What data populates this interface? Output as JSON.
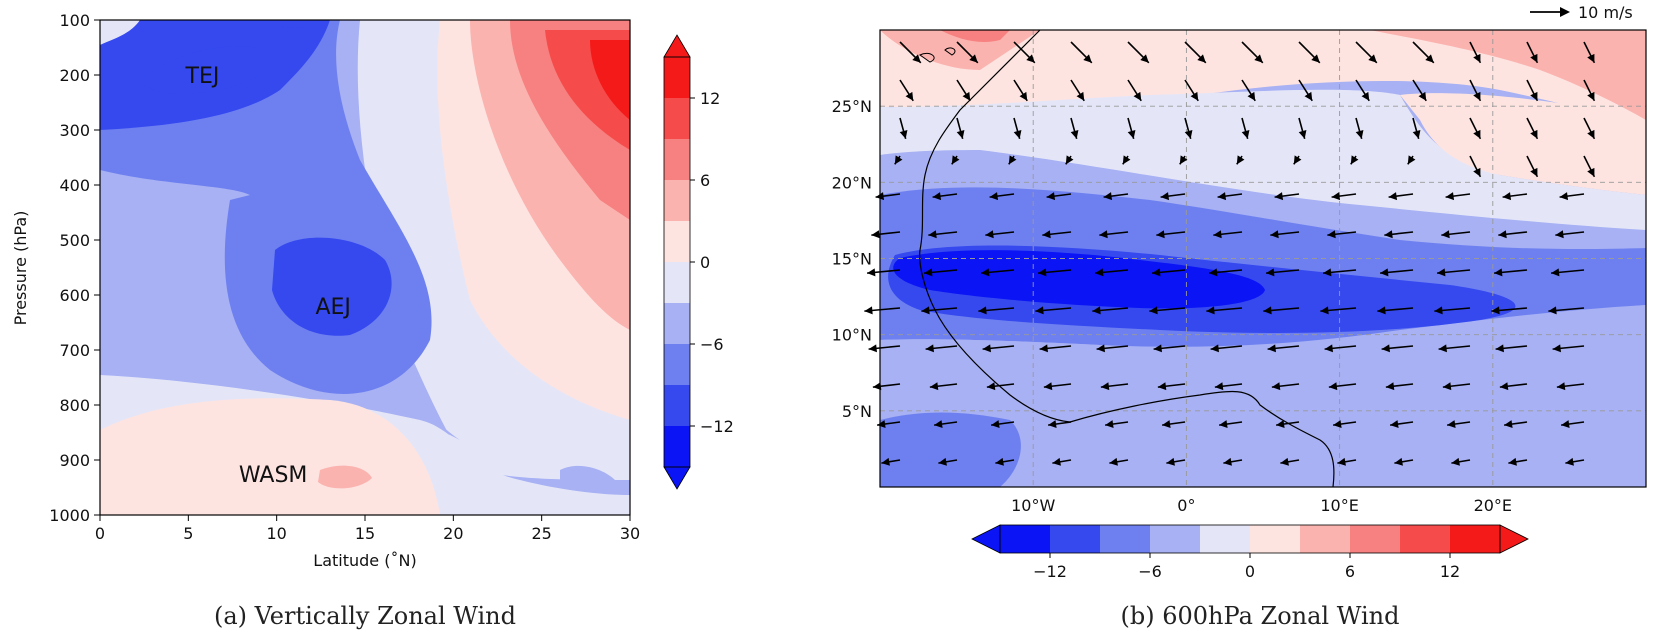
{
  "chart_data": [
    {
      "type": "contour",
      "caption": "(a)  Vertically  Zonal  Wind",
      "xlabel": "Latitude (˚N)",
      "ylabel": "Pressure (hPa)",
      "xlim": [
        0,
        30
      ],
      "ylim": [
        1000,
        100
      ],
      "x_ticks": [
        "0",
        "5",
        "10",
        "15",
        "20",
        "25",
        "30"
      ],
      "y_ticks": [
        "100",
        "200",
        "300",
        "400",
        "500",
        "600",
        "700",
        "800",
        "900",
        "1000"
      ],
      "colorbar_ticks": [
        "12",
        "6",
        "0",
        "−6",
        "−12"
      ],
      "colorbar_levels": [
        -15,
        -12,
        -9,
        -6,
        -3,
        0,
        3,
        6,
        9,
        12,
        15
      ],
      "annotations": [
        {
          "label": "TEJ",
          "lat": 5.8,
          "pressure": 200
        },
        {
          "label": "AEJ",
          "lat": 13.2,
          "pressure": 620
        },
        {
          "label": "WASM",
          "lat": 9.8,
          "pressure": 925
        }
      ]
    },
    {
      "type": "map-contour-vector",
      "caption": "(b)  600hPa  Zonal  Wind",
      "lon_ticks": [
        "10°W",
        "0°",
        "10°E",
        "20°E"
      ],
      "lat_ticks": [
        "25°N",
        "20°N",
        "15°N",
        "10°N",
        "5°N"
      ],
      "lon_range": [
        -20,
        30
      ],
      "lat_range": [
        0,
        30
      ],
      "colorbar_ticks": [
        "−12",
        "−6",
        "0",
        "6",
        "12"
      ],
      "vector_reference": "10 m/s",
      "grid": true
    }
  ],
  "colors": {
    "neg": [
      "#0a14f5",
      "#3549ef",
      "#6e80f0",
      "#a7b1f3",
      "#e4e6f8"
    ],
    "pos": [
      "#fde4e1",
      "#fbb3af",
      "#f78080",
      "#f54b4b",
      "#f51a1a"
    ]
  }
}
